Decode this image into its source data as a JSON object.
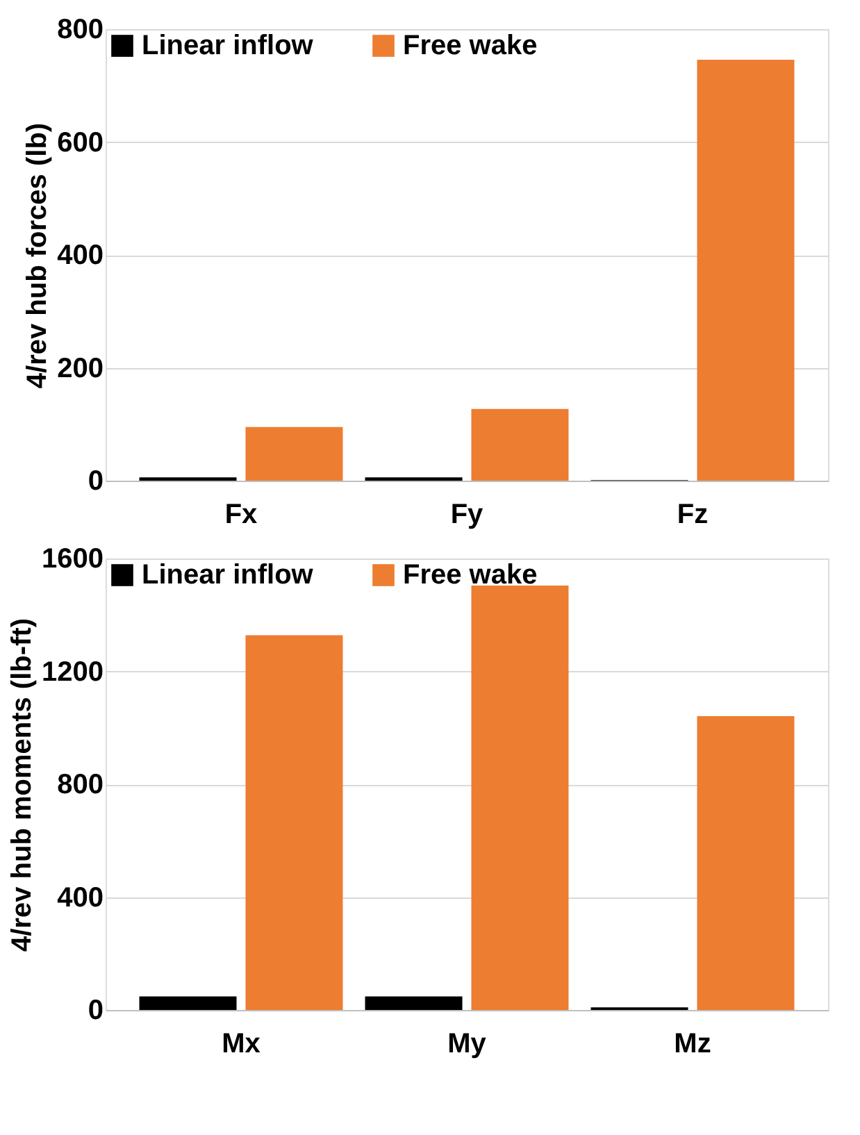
{
  "chart_data": [
    {
      "type": "bar",
      "ylabel": "4/rev hub forces (lb)",
      "categories": [
        "Fx",
        "Fy",
        "Fz"
      ],
      "series": [
        {
          "name": "Linear inflow",
          "color": "#000000",
          "values": [
            6,
            6,
            1
          ]
        },
        {
          "name": "Free wake",
          "color": "#ed7d31",
          "values": [
            95,
            127,
            746
          ]
        }
      ],
      "ylim": [
        0,
        800
      ],
      "yticks": [
        0,
        200,
        400,
        600,
        800
      ],
      "grid": "y",
      "legend": "top left"
    },
    {
      "type": "bar",
      "ylabel": "4/rev hub moments (lb-ft)",
      "categories": [
        "Mx",
        "My",
        "Mz"
      ],
      "series": [
        {
          "name": "Linear inflow",
          "color": "#000000",
          "values": [
            48,
            48,
            9
          ]
        },
        {
          "name": "Free wake",
          "color": "#ed7d31",
          "values": [
            1328,
            1504,
            1041
          ]
        }
      ],
      "ylim": [
        0,
        1600
      ],
      "yticks": [
        0,
        400,
        800,
        1200,
        1600
      ],
      "grid": "y",
      "legend": "top left"
    }
  ]
}
